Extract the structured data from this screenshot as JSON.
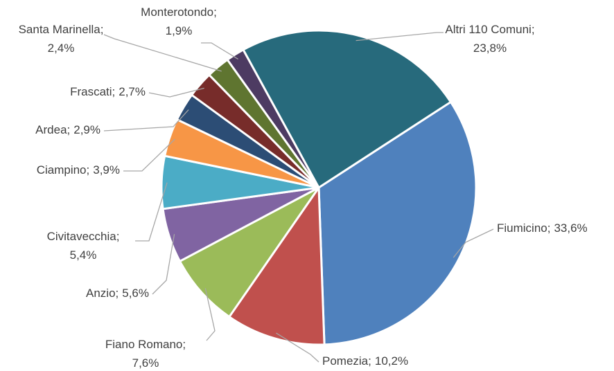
{
  "chart_data": {
    "type": "pie",
    "categories": [
      "Fiumicino;",
      "Pomezia;",
      "Fiano Romano;",
      "Anzio;",
      "Civitavecchia;",
      "Ciampino;",
      "Ardea;",
      "Frascati;",
      "Santa Marinella;",
      "Monterotondo;",
      "Altri 110 Comuni;"
    ],
    "values": [
      33.6,
      10.2,
      7.6,
      5.6,
      5.4,
      3.9,
      2.9,
      2.7,
      2.4,
      1.9,
      23.8
    ],
    "value_labels": [
      "33,6%",
      "10,2%",
      "7,6%",
      "5,6%",
      "5,4%",
      "3,9%",
      "2,9%",
      "2,7%",
      "2,4%",
      "1,9%",
      "23,8%"
    ],
    "colors": [
      "#4f81bd",
      "#c0504d",
      "#9bbb59",
      "#8064a2",
      "#4bacc6",
      "#f79646",
      "#2c4d75",
      "#772c2a",
      "#5f7530",
      "#4d3b62",
      "#276a7c"
    ],
    "start_angle": 57
  }
}
